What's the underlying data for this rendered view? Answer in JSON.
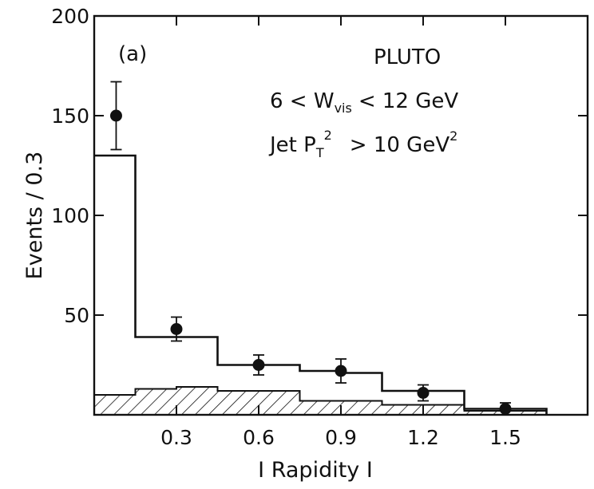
{
  "chart_data": {
    "type": "bar",
    "panel_label": "(a)",
    "xlabel": "I Rapidity I",
    "ylabel": "Events / 0.3",
    "xlim": [
      0,
      1.8
    ],
    "ylim": [
      0,
      200
    ],
    "x_ticks": [
      0.3,
      0.6,
      0.9,
      1.2,
      1.5
    ],
    "x_tick_labels": [
      "0.3",
      "0.6",
      "0.9",
      "1.2",
      "1.5"
    ],
    "y_ticks": [
      50,
      100,
      150,
      200
    ],
    "y_tick_labels": [
      "50",
      "100",
      "150",
      "200"
    ],
    "annotations": {
      "experiment": "PLUTO",
      "wvis_left": "6 < W",
      "wvis_sub": "vis",
      "wvis_right": "< 12 GeV",
      "pt_left": "Jet  P",
      "pt_sub": "T",
      "pt_sup": "2",
      "pt_right": "> 10 GeV",
      "pt_unit_sup": "2"
    },
    "series": [
      {
        "type": "step",
        "bins": [
          {
            "x0": 0.0,
            "x1": 0.15,
            "value": 130
          },
          {
            "x0": 0.15,
            "x1": 0.45,
            "value": 39
          },
          {
            "x0": 0.45,
            "x1": 0.75,
            "value": 25
          },
          {
            "x0": 0.75,
            "x1": 0.9,
            "value": 22
          },
          {
            "x0": 0.9,
            "x1": 1.05,
            "value": 21
          },
          {
            "x0": 1.05,
            "x1": 1.35,
            "value": 12
          },
          {
            "x0": 1.35,
            "x1": 1.65,
            "value": 3
          }
        ]
      },
      {
        "type": "hatched",
        "bins": [
          {
            "x0": 0.0,
            "x1": 0.15,
            "value": 10
          },
          {
            "x0": 0.15,
            "x1": 0.3,
            "value": 13
          },
          {
            "x0": 0.3,
            "x1": 0.45,
            "value": 14
          },
          {
            "x0": 0.45,
            "x1": 0.75,
            "value": 12
          },
          {
            "x0": 0.75,
            "x1": 1.05,
            "value": 7
          },
          {
            "x0": 1.05,
            "x1": 1.35,
            "value": 5
          },
          {
            "x0": 1.35,
            "x1": 1.65,
            "value": 2
          }
        ]
      },
      {
        "type": "points",
        "points": [
          {
            "x": 0.08,
            "y": 150,
            "err": 17
          },
          {
            "x": 0.3,
            "y": 43,
            "err": 6
          },
          {
            "x": 0.6,
            "y": 25,
            "err": 5
          },
          {
            "x": 0.9,
            "y": 22,
            "err": 6
          },
          {
            "x": 1.2,
            "y": 11,
            "err": 4
          },
          {
            "x": 1.5,
            "y": 3,
            "err": 3
          }
        ]
      }
    ]
  }
}
